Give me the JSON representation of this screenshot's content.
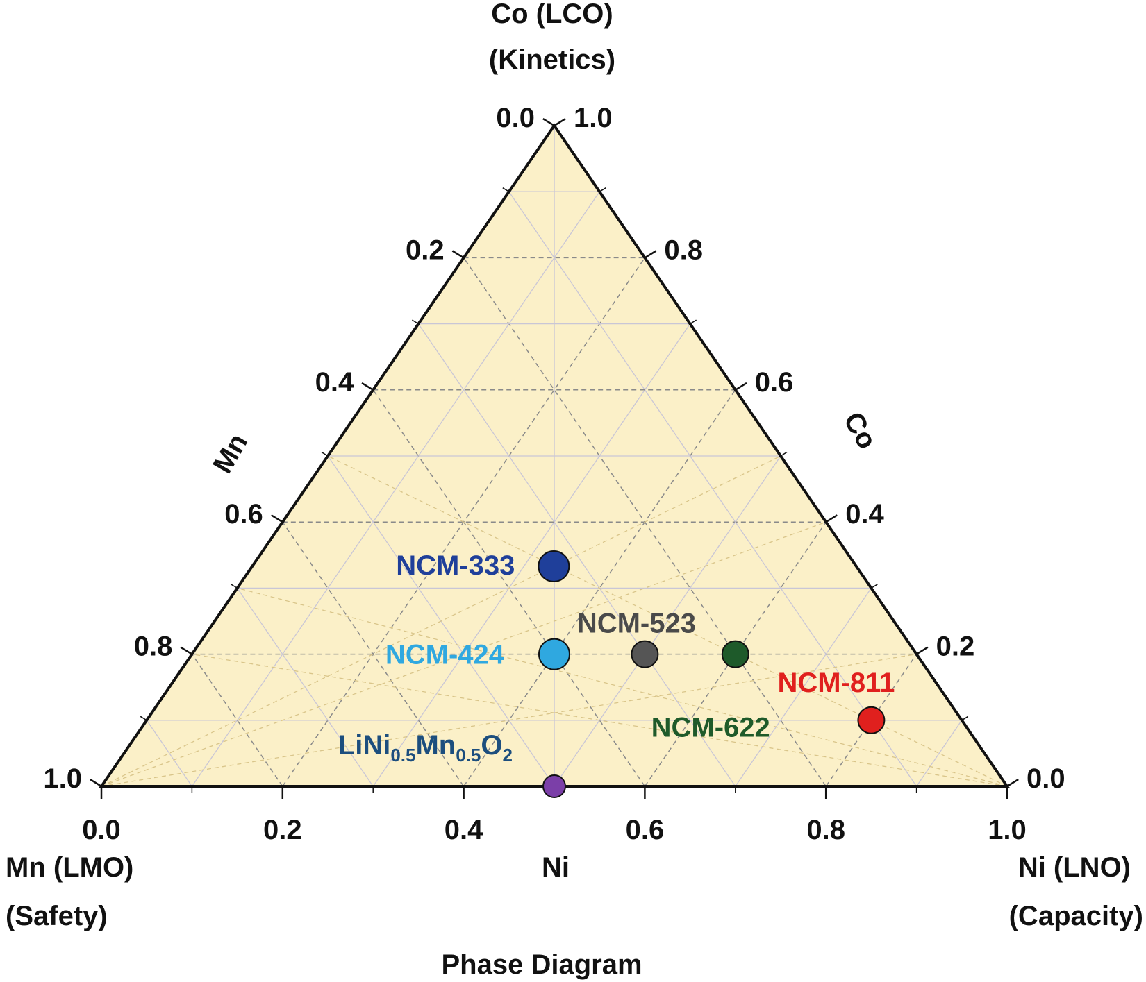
{
  "chart_data": {
    "type": "ternary",
    "title": "Phase Diagram",
    "components": {
      "top": "Co",
      "left": "Mn",
      "right": "Ni"
    },
    "corners": {
      "top": [
        "Co (LCO)",
        "(Kinetics)"
      ],
      "left": [
        "Mn (LMO)",
        "(Safety)"
      ],
      "right": [
        "Ni (LNO)",
        "(Capacity)"
      ]
    },
    "axis_names": {
      "bottom": "Ni",
      "left": "Mn",
      "right": "Co"
    },
    "ticks": {
      "bottom": [
        "0.0",
        "0.2",
        "0.4",
        "0.6",
        "0.8",
        "1.0"
      ],
      "left": [
        "0.0",
        "0.2",
        "0.4",
        "0.6",
        "0.8",
        "1.0"
      ],
      "right": [
        "0.0",
        "0.2",
        "0.4",
        "0.6",
        "0.8",
        "1.0"
      ]
    },
    "grid": true,
    "fill_color": "#FBF0C8",
    "points": [
      {
        "name": "NCM-333",
        "ni": 0.333,
        "co": 0.333,
        "mn": 0.333,
        "color": "#1F3F9A",
        "label_color": "#1F3F9A",
        "size": "large"
      },
      {
        "name": "NCM-424",
        "ni": 0.4,
        "co": 0.2,
        "mn": 0.4,
        "color": "#2FA8E0",
        "label_color": "#2FA8E0",
        "size": "large"
      },
      {
        "name": "NCM-523",
        "ni": 0.5,
        "co": 0.2,
        "mn": 0.3,
        "color": "#555555",
        "label_color": "#4A4A4A",
        "size": "medium"
      },
      {
        "name": "NCM-622",
        "ni": 0.6,
        "co": 0.2,
        "mn": 0.2,
        "color": "#1E5A2A",
        "label_color": "#1E5A2A",
        "size": "medium"
      },
      {
        "name": "NCM-811",
        "ni": 0.8,
        "co": 0.1,
        "mn": 0.1,
        "color": "#E0201E",
        "label_color": "#E0201E",
        "size": "medium"
      },
      {
        "name": "LiNi0.5Mn0.5O2",
        "ni": 0.5,
        "co": 0.0,
        "mn": 0.5,
        "color": "#7B3FA8",
        "label_color": "#1C4E7E",
        "size": "small",
        "formula": [
          {
            "t": "LiNi",
            "sub": false
          },
          {
            "t": "0.5",
            "sub": true
          },
          {
            "t": "Mn",
            "sub": false
          },
          {
            "t": "0.5",
            "sub": true
          },
          {
            "t": "O",
            "sub": false
          },
          {
            "t": "2",
            "sub": true
          }
        ]
      }
    ]
  }
}
